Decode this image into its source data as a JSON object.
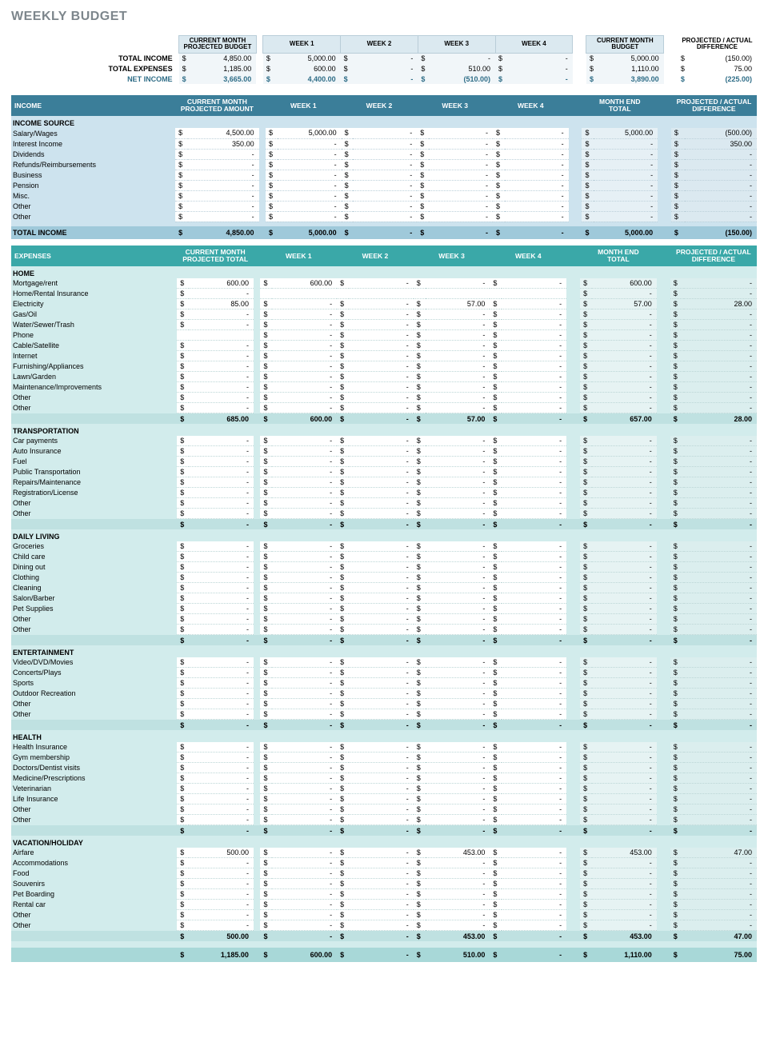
{
  "title": "WEEKLY BUDGET",
  "dollar": "$",
  "dash": "-",
  "summary": {
    "headers": [
      "CURRENT MONTH PROJECTED BUDGET",
      "WEEK 1",
      "WEEK 2",
      "WEEK 3",
      "WEEK 4",
      "CURRENT MONTH BUDGET",
      "PROJECTED / ACTUAL DIFFERENCE"
    ],
    "rows": [
      {
        "label": "TOTAL INCOME",
        "vals": [
          "4,850.00",
          "5,000.00",
          "-",
          "-",
          "-",
          "5,000.00",
          "(150.00)"
        ]
      },
      {
        "label": "TOTAL EXPENSES",
        "vals": [
          "1,185.00",
          "600.00",
          "-",
          "510.00",
          "-",
          "1,110.00",
          "75.00"
        ]
      },
      {
        "label": "NET INCOME",
        "vals": [
          "3,665.00",
          "4,400.00",
          "-",
          "(510.00)",
          "-",
          "3,890.00",
          "(225.00)"
        ],
        "net": true
      }
    ]
  },
  "income": {
    "bar": "INCOME",
    "headers": [
      "CURRENT MONTH PROJECTED AMOUNT",
      "WEEK 1",
      "WEEK 2",
      "WEEK 3",
      "WEEK 4",
      "MONTH END TOTAL",
      "PROJECTED / ACTUAL DIFFERENCE"
    ],
    "catlabel": "INCOME SOURCE",
    "rows": [
      {
        "label": "Salary/Wages",
        "vals": [
          "4,500.00",
          "5,000.00",
          "-",
          "-",
          "-",
          "5,000.00",
          "(500.00)"
        ]
      },
      {
        "label": "Interest Income",
        "vals": [
          "350.00",
          "-",
          "-",
          "-",
          "-",
          "-",
          "350.00"
        ]
      },
      {
        "label": "Dividends",
        "vals": [
          "-",
          "-",
          "-",
          "-",
          "-",
          "-",
          "-"
        ]
      },
      {
        "label": "Refunds/Reimbursements",
        "vals": [
          "-",
          "-",
          "-",
          "-",
          "-",
          "-",
          "-"
        ]
      },
      {
        "label": "Business",
        "vals": [
          "-",
          "-",
          "-",
          "-",
          "-",
          "-",
          "-"
        ]
      },
      {
        "label": "Pension",
        "vals": [
          "-",
          "-",
          "-",
          "-",
          "-",
          "-",
          "-"
        ]
      },
      {
        "label": "Misc.",
        "vals": [
          "-",
          "-",
          "-",
          "-",
          "-",
          "-",
          "-"
        ]
      },
      {
        "label": "Other",
        "vals": [
          "-",
          "-",
          "-",
          "-",
          "-",
          "-",
          "-"
        ]
      },
      {
        "label": "Other",
        "vals": [
          "-",
          "-",
          "-",
          "-",
          "-",
          "-",
          "-"
        ]
      }
    ],
    "total": {
      "label": "TOTAL INCOME",
      "vals": [
        "4,850.00",
        "5,000.00",
        "-",
        "-",
        "-",
        "5,000.00",
        "(150.00)"
      ]
    }
  },
  "expenses": {
    "bar": "EXPENSES",
    "headers": [
      "CURRENT MONTH PROJECTED TOTAL",
      "WEEK 1",
      "WEEK 2",
      "WEEK 3",
      "WEEK 4",
      "MONTH END TOTAL",
      "PROJECTED / ACTUAL DIFFERENCE"
    ],
    "cats": [
      {
        "name": "HOME",
        "rows": [
          {
            "label": "Mortgage/rent",
            "vals": [
              "600.00",
              "600.00",
              "-",
              "-",
              "-",
              "600.00",
              "-"
            ]
          },
          {
            "label": "Home/Rental Insurance",
            "vals": [
              "-",
              "",
              "",
              "",
              "",
              "-",
              "-"
            ]
          },
          {
            "label": "Electricity",
            "vals": [
              "85.00",
              "-",
              "-",
              "57.00",
              "-",
              "57.00",
              "28.00"
            ]
          },
          {
            "label": "Gas/Oil",
            "vals": [
              "-",
              "-",
              "-",
              "-",
              "-",
              "-",
              "-"
            ]
          },
          {
            "label": "Water/Sewer/Trash",
            "vals": [
              "-",
              "-",
              "-",
              "-",
              "-",
              "-",
              "-"
            ]
          },
          {
            "label": "Phone",
            "vals": [
              "",
              "-",
              "-",
              "-",
              "-",
              "-",
              "-"
            ]
          },
          {
            "label": "Cable/Satellite",
            "vals": [
              "-",
              "-",
              "-",
              "-",
              "-",
              "-",
              "-"
            ]
          },
          {
            "label": "Internet",
            "vals": [
              "-",
              "-",
              "-",
              "-",
              "-",
              "-",
              "-"
            ]
          },
          {
            "label": "Furnishing/Appliances",
            "vals": [
              "-",
              "-",
              "-",
              "-",
              "-",
              "-",
              "-"
            ]
          },
          {
            "label": "Lawn/Garden",
            "vals": [
              "-",
              "-",
              "-",
              "-",
              "-",
              "-",
              "-"
            ]
          },
          {
            "label": "Maintenance/Improvements",
            "vals": [
              "-",
              "-",
              "-",
              "-",
              "-",
              "-",
              "-"
            ]
          },
          {
            "label": "Other",
            "vals": [
              "-",
              "-",
              "-",
              "-",
              "-",
              "-",
              "-"
            ]
          },
          {
            "label": "Other",
            "vals": [
              "-",
              "-",
              "-",
              "-",
              "-",
              "-",
              "-"
            ]
          }
        ],
        "subtotal": [
          "685.00",
          "600.00",
          "-",
          "57.00",
          "-",
          "657.00",
          "28.00"
        ]
      },
      {
        "name": "TRANSPORTATION",
        "rows": [
          {
            "label": "Car payments",
            "vals": [
              "-",
              "-",
              "-",
              "-",
              "-",
              "-",
              "-"
            ]
          },
          {
            "label": "Auto Insurance",
            "vals": [
              "-",
              "-",
              "-",
              "-",
              "-",
              "-",
              "-"
            ]
          },
          {
            "label": "Fuel",
            "vals": [
              "-",
              "-",
              "-",
              "-",
              "-",
              "-",
              "-"
            ]
          },
          {
            "label": "Public Transportation",
            "vals": [
              "-",
              "-",
              "-",
              "-",
              "-",
              "-",
              "-"
            ]
          },
          {
            "label": "Repairs/Maintenance",
            "vals": [
              "-",
              "-",
              "-",
              "-",
              "-",
              "-",
              "-"
            ]
          },
          {
            "label": "Registration/License",
            "vals": [
              "-",
              "-",
              "-",
              "-",
              "-",
              "-",
              "-"
            ]
          },
          {
            "label": "Other",
            "vals": [
              "-",
              "-",
              "-",
              "-",
              "-",
              "-",
              "-"
            ]
          },
          {
            "label": "Other",
            "vals": [
              "-",
              "-",
              "-",
              "-",
              "-",
              "-",
              "-"
            ]
          }
        ],
        "subtotal": [
          "-",
          "-",
          "-",
          "-",
          "-",
          "-",
          "-"
        ]
      },
      {
        "name": "DAILY LIVING",
        "rows": [
          {
            "label": "Groceries",
            "vals": [
              "-",
              "-",
              "-",
              "-",
              "-",
              "-",
              "-"
            ]
          },
          {
            "label": "Child care",
            "vals": [
              "-",
              "-",
              "-",
              "-",
              "-",
              "-",
              "-"
            ]
          },
          {
            "label": "Dining out",
            "vals": [
              "-",
              "-",
              "-",
              "-",
              "-",
              "-",
              "-"
            ]
          },
          {
            "label": "Clothing",
            "vals": [
              "-",
              "-",
              "-",
              "-",
              "-",
              "-",
              "-"
            ]
          },
          {
            "label": "Cleaning",
            "vals": [
              "-",
              "-",
              "-",
              "-",
              "-",
              "-",
              "-"
            ]
          },
          {
            "label": "Salon/Barber",
            "vals": [
              "-",
              "-",
              "-",
              "-",
              "-",
              "-",
              "-"
            ]
          },
          {
            "label": "Pet Supplies",
            "vals": [
              "-",
              "-",
              "-",
              "-",
              "-",
              "-",
              "-"
            ]
          },
          {
            "label": "Other",
            "vals": [
              "-",
              "-",
              "-",
              "-",
              "-",
              "-",
              "-"
            ]
          },
          {
            "label": "Other",
            "vals": [
              "-",
              "-",
              "-",
              "-",
              "-",
              "-",
              "-"
            ]
          }
        ],
        "subtotal": [
          "-",
          "-",
          "-",
          "-",
          "-",
          "-",
          "-"
        ]
      },
      {
        "name": "ENTERTAINMENT",
        "rows": [
          {
            "label": "Video/DVD/Movies",
            "vals": [
              "-",
              "-",
              "-",
              "-",
              "-",
              "-",
              "-"
            ]
          },
          {
            "label": "Concerts/Plays",
            "vals": [
              "-",
              "-",
              "-",
              "-",
              "-",
              "-",
              "-"
            ]
          },
          {
            "label": "Sports",
            "vals": [
              "-",
              "-",
              "-",
              "-",
              "-",
              "-",
              "-"
            ]
          },
          {
            "label": "Outdoor Recreation",
            "vals": [
              "-",
              "-",
              "-",
              "-",
              "-",
              "-",
              "-"
            ]
          },
          {
            "label": "Other",
            "vals": [
              "-",
              "-",
              "-",
              "-",
              "-",
              "-",
              "-"
            ]
          },
          {
            "label": "Other",
            "vals": [
              "-",
              "-",
              "-",
              "-",
              "-",
              "-",
              "-"
            ]
          }
        ],
        "subtotal": [
          "-",
          "-",
          "-",
          "-",
          "-",
          "-",
          "-"
        ]
      },
      {
        "name": "HEALTH",
        "rows": [
          {
            "label": "Health Insurance",
            "vals": [
              "-",
              "-",
              "-",
              "-",
              "-",
              "-",
              "-"
            ]
          },
          {
            "label": "Gym membership",
            "vals": [
              "-",
              "-",
              "-",
              "-",
              "-",
              "-",
              "-"
            ]
          },
          {
            "label": "Doctors/Dentist visits",
            "vals": [
              "-",
              "-",
              "-",
              "-",
              "-",
              "-",
              "-"
            ]
          },
          {
            "label": "Medicine/Prescriptions",
            "vals": [
              "-",
              "-",
              "-",
              "-",
              "-",
              "-",
              "-"
            ]
          },
          {
            "label": "Veterinarian",
            "vals": [
              "-",
              "-",
              "-",
              "-",
              "-",
              "-",
              "-"
            ]
          },
          {
            "label": "Life Insurance",
            "vals": [
              "-",
              "-",
              "-",
              "-",
              "-",
              "-",
              "-"
            ]
          },
          {
            "label": "Other",
            "vals": [
              "-",
              "-",
              "-",
              "-",
              "-",
              "-",
              "-"
            ]
          },
          {
            "label": "Other",
            "vals": [
              "-",
              "-",
              "-",
              "-",
              "-",
              "-",
              "-"
            ]
          }
        ],
        "subtotal": [
          "-",
          "-",
          "-",
          "-",
          "-",
          "-",
          "-"
        ]
      },
      {
        "name": "VACATION/HOLIDAY",
        "rows": [
          {
            "label": "Airfare",
            "vals": [
              "500.00",
              "-",
              "-",
              "453.00",
              "-",
              "453.00",
              "47.00"
            ]
          },
          {
            "label": "Accommodations",
            "vals": [
              "-",
              "-",
              "-",
              "-",
              "-",
              "-",
              "-"
            ]
          },
          {
            "label": "Food",
            "vals": [
              "-",
              "-",
              "-",
              "-",
              "-",
              "-",
              "-"
            ]
          },
          {
            "label": "Souvenirs",
            "vals": [
              "-",
              "-",
              "-",
              "-",
              "-",
              "-",
              "-"
            ]
          },
          {
            "label": "Pet Boarding",
            "vals": [
              "-",
              "-",
              "-",
              "-",
              "-",
              "-",
              "-"
            ]
          },
          {
            "label": "Rental car",
            "vals": [
              "-",
              "-",
              "-",
              "-",
              "-",
              "-",
              "-"
            ]
          },
          {
            "label": "Other",
            "vals": [
              "-",
              "-",
              "-",
              "-",
              "-",
              "-",
              "-"
            ]
          },
          {
            "label": "Other",
            "vals": [
              "-",
              "-",
              "-",
              "-",
              "-",
              "-",
              "-"
            ]
          }
        ],
        "subtotal": [
          "500.00",
          "-",
          "-",
          "453.00",
          "-",
          "453.00",
          "47.00"
        ]
      }
    ],
    "grand": [
      "1,185.00",
      "600.00",
      "-",
      "510.00",
      "-",
      "1,110.00",
      "75.00"
    ]
  }
}
